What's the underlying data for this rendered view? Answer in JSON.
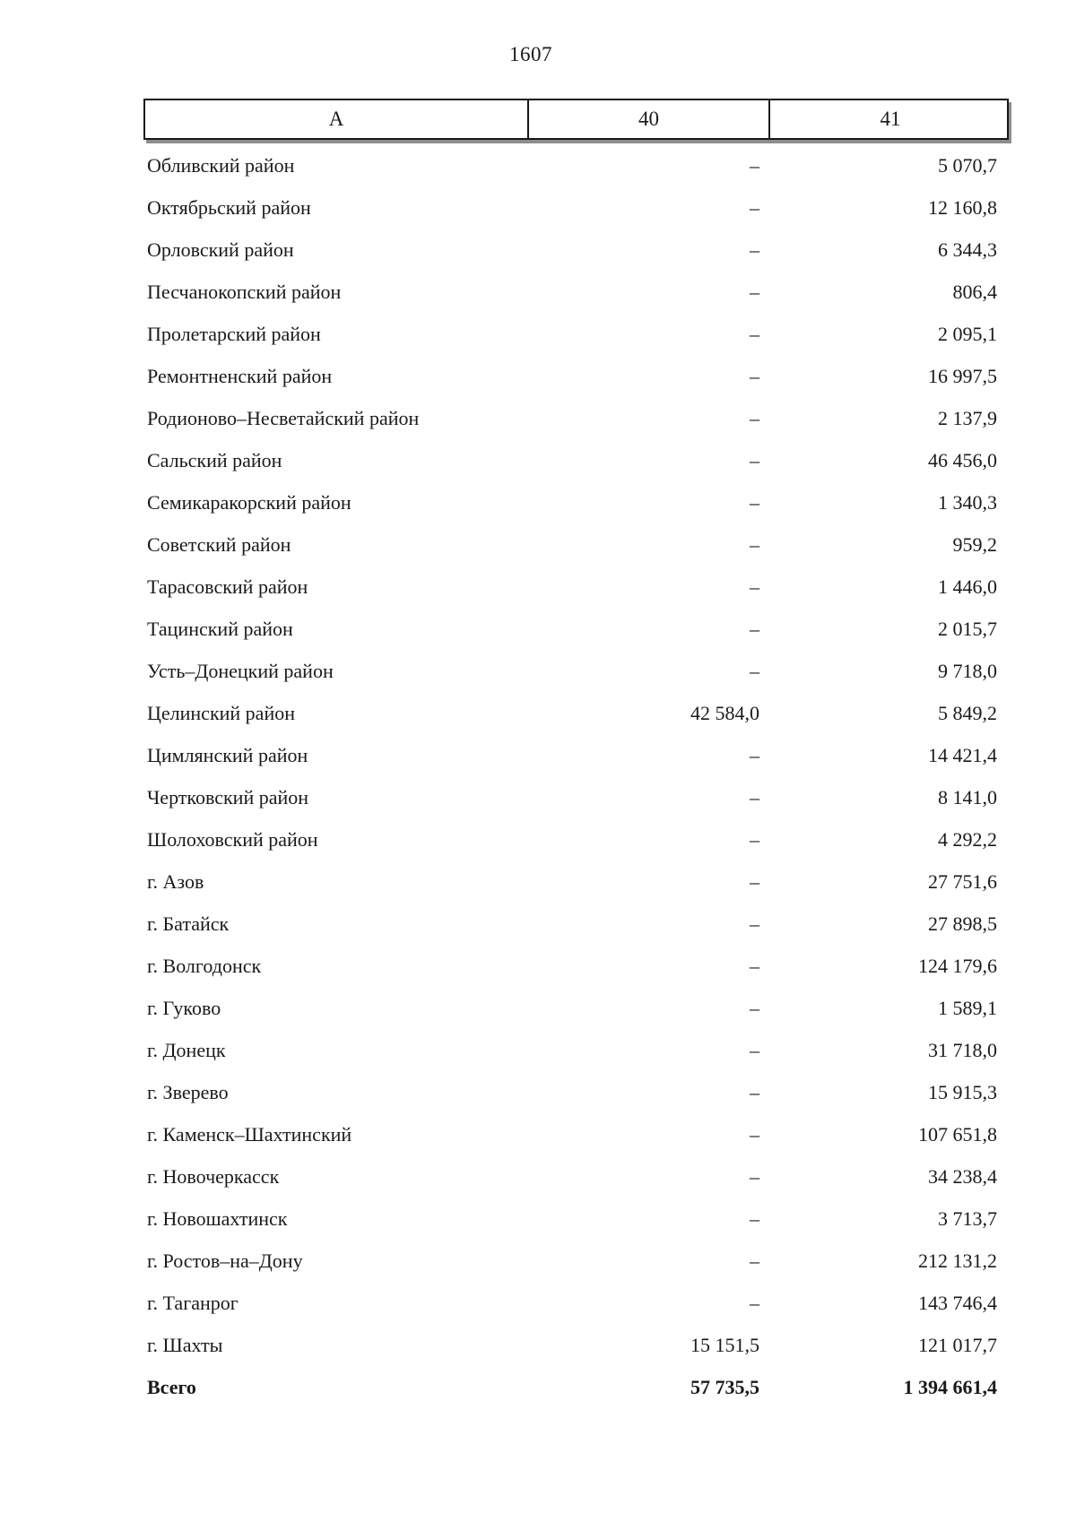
{
  "page": {
    "number": "1607"
  },
  "table": {
    "columns": [
      {
        "label": "А"
      },
      {
        "label": "40"
      },
      {
        "label": "41"
      }
    ],
    "rows": [
      {
        "label": "Обливский район",
        "c40": "–",
        "c41": "5 070,7"
      },
      {
        "label": "Октябрьский район",
        "c40": "–",
        "c41": "12 160,8"
      },
      {
        "label": "Орловский район",
        "c40": "–",
        "c41": "6 344,3"
      },
      {
        "label": "Песчанокопский район",
        "c40": "–",
        "c41": "806,4"
      },
      {
        "label": "Пролетарский район",
        "c40": "–",
        "c41": "2 095,1"
      },
      {
        "label": "Ремонтненский район",
        "c40": "–",
        "c41": "16 997,5"
      },
      {
        "label": "Родионово–Несветайский район",
        "c40": "–",
        "c41": "2 137,9"
      },
      {
        "label": "Сальский район",
        "c40": "–",
        "c41": "46 456,0"
      },
      {
        "label": "Семикаракорский район",
        "c40": "–",
        "c41": "1 340,3"
      },
      {
        "label": "Советский район",
        "c40": "–",
        "c41": "959,2"
      },
      {
        "label": "Тарасовский район",
        "c40": "–",
        "c41": "1 446,0"
      },
      {
        "label": "Тацинский район",
        "c40": "–",
        "c41": "2 015,7"
      },
      {
        "label": "Усть–Донецкий район",
        "c40": "–",
        "c41": "9 718,0"
      },
      {
        "label": "Целинский район",
        "c40": "42 584,0",
        "c41": "5 849,2"
      },
      {
        "label": "Цимлянский район",
        "c40": "–",
        "c41": "14 421,4"
      },
      {
        "label": "Чертковский район",
        "c40": "–",
        "c41": "8 141,0"
      },
      {
        "label": "Шолоховский район",
        "c40": "–",
        "c41": "4 292,2"
      },
      {
        "label": "г. Азов",
        "c40": "–",
        "c41": "27 751,6"
      },
      {
        "label": "г. Батайск",
        "c40": "–",
        "c41": "27 898,5"
      },
      {
        "label": "г. Волгодонск",
        "c40": "–",
        "c41": "124 179,6"
      },
      {
        "label": "г. Гуково",
        "c40": "–",
        "c41": "1 589,1"
      },
      {
        "label": "г. Донецк",
        "c40": "–",
        "c41": "31 718,0"
      },
      {
        "label": "г. Зверево",
        "c40": "–",
        "c41": "15 915,3"
      },
      {
        "label": "г. Каменск–Шахтинский",
        "c40": "–",
        "c41": "107 651,8"
      },
      {
        "label": "г. Новочеркасск",
        "c40": "–",
        "c41": "34 238,4"
      },
      {
        "label": "г. Новошахтинск",
        "c40": "–",
        "c41": "3 713,7"
      },
      {
        "label": "г. Ростов–на–Дону",
        "c40": "–",
        "c41": "212 131,2"
      },
      {
        "label": "г. Таганрог",
        "c40": "–",
        "c41": "143 746,4"
      },
      {
        "label": "г. Шахты",
        "c40": "15 151,5",
        "c41": "121 017,7"
      },
      {
        "label": "Всего",
        "c40": "57 735,5",
        "c41": "1 394 661,4",
        "bold": true
      }
    ]
  }
}
